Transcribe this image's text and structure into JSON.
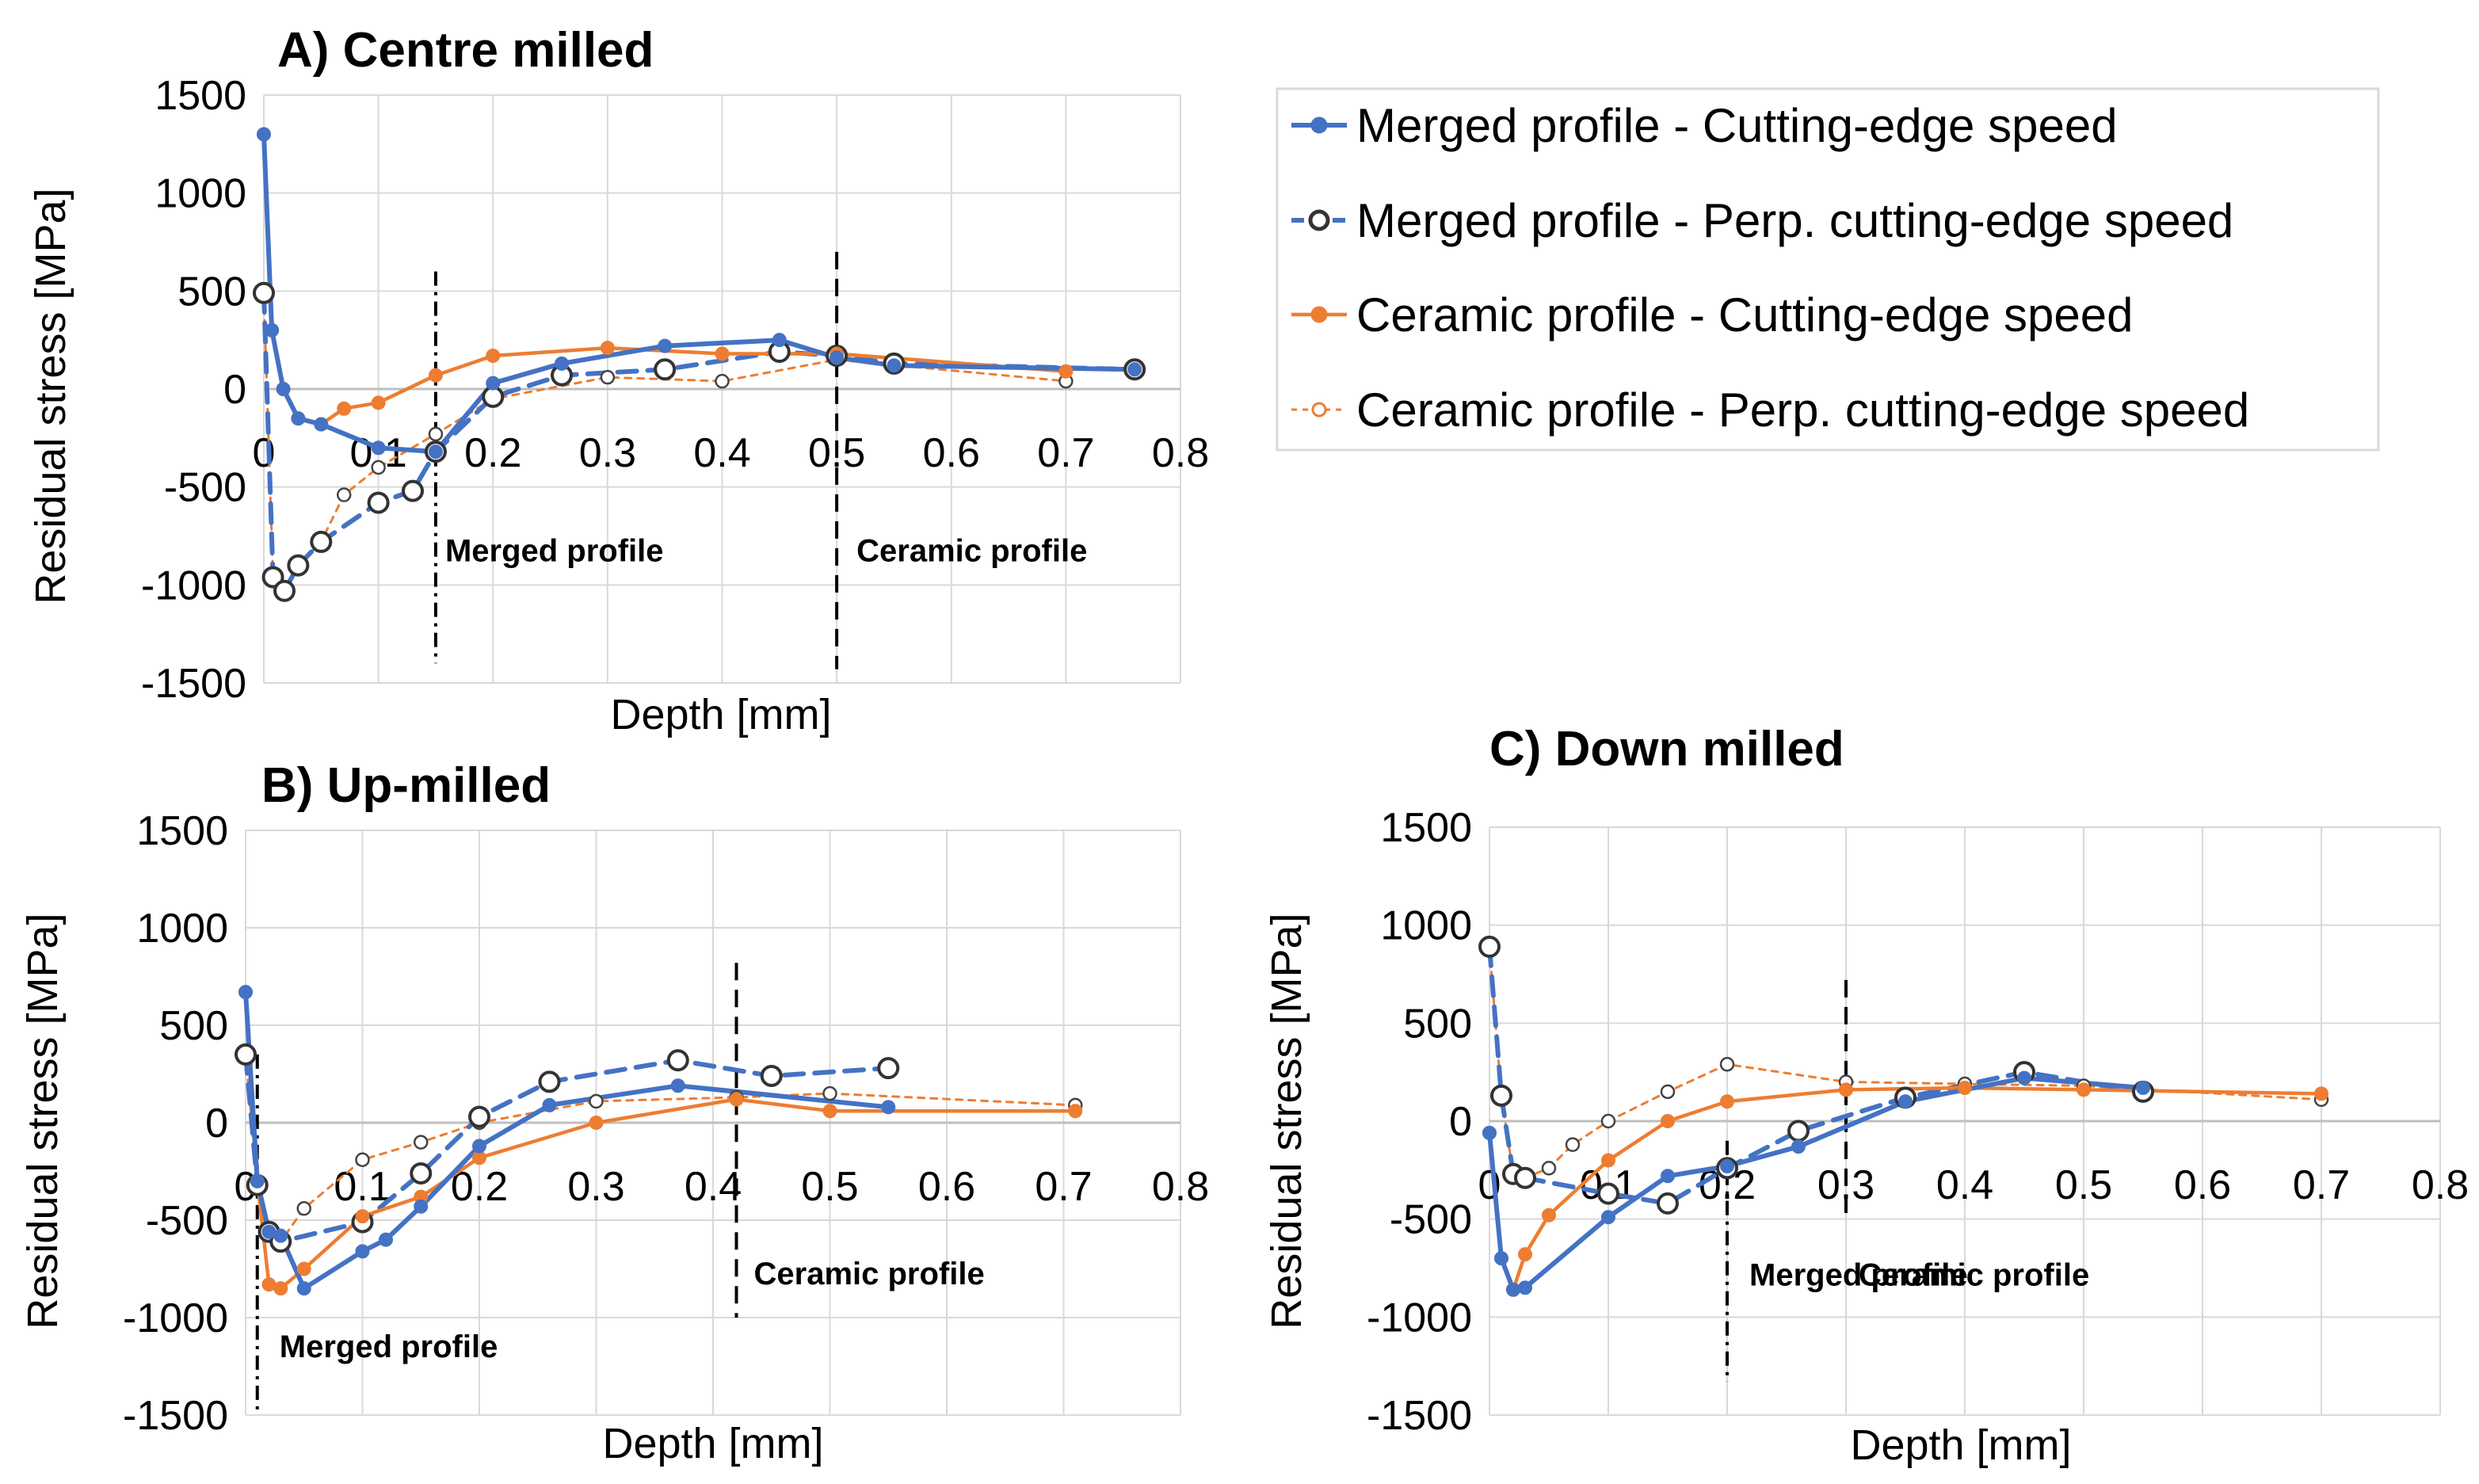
{
  "colors": {
    "blue": "#4472c4",
    "orange": "#ed7d31",
    "grid": "#d9d9d9",
    "black": "#000000"
  },
  "legend": [
    {
      "label": "Merged profile - Cutting-edge speed",
      "color": "#4472c4",
      "dash": "solid",
      "marker": "filled"
    },
    {
      "label": "Merged profile - Perp. cutting-edge speed",
      "color": "#4472c4",
      "dash": "dashed",
      "marker": "hollow"
    },
    {
      "label": "Ceramic profile - Cutting-edge speed",
      "color": "#ed7d31",
      "dash": "solid",
      "marker": "filled"
    },
    {
      "label": "Ceramic profile - Perp. cutting-edge speed",
      "color": "#ed7d31",
      "dash": "dotted",
      "marker": "hollow"
    }
  ],
  "chart_data": [
    {
      "id": "A",
      "type": "line",
      "title": "A) Centre milled",
      "xlabel": "Depth [mm]",
      "ylabel": "Residual stress [MPa]",
      "xlim": [
        0,
        0.8
      ],
      "ylim": [
        -1500,
        1500
      ],
      "xticks": [
        "0",
        "0.1",
        "0.2",
        "0.3",
        "0.4",
        "0.5",
        "0.6",
        "0.7",
        "0.8"
      ],
      "yticks": [
        "-1500",
        "-1000",
        "-500",
        "0",
        "500",
        "1000",
        "1500"
      ],
      "grid": true,
      "vlines": [
        {
          "x": 0.15,
          "style": "dashdot",
          "label": "Merged profile",
          "y_top": 600,
          "y_bottom": -1400
        },
        {
          "x": 0.5,
          "style": "dashed",
          "label": "Ceramic profile",
          "y_top": 700,
          "y_bottom": -1430
        }
      ],
      "series": [
        {
          "name": "Merged profile - Cutting-edge speed",
          "x": [
            0,
            0.007,
            0.017,
            0.03,
            0.05,
            0.1,
            0.15,
            0.2,
            0.26,
            0.35,
            0.45,
            0.5,
            0.55,
            0.76
          ],
          "y": [
            1300,
            300,
            0,
            -150,
            -180,
            -300,
            -320,
            30,
            130,
            220,
            250,
            160,
            120,
            100
          ]
        },
        {
          "name": "Merged profile - Perp. cutting-edge speed",
          "x": [
            0,
            0.008,
            0.018,
            0.03,
            0.05,
            0.1,
            0.13,
            0.15,
            0.2,
            0.26,
            0.35,
            0.45,
            0.5,
            0.55,
            0.76
          ],
          "y": [
            490,
            -960,
            -1030,
            -900,
            -780,
            -580,
            -520,
            -320,
            -40,
            70,
            100,
            190,
            170,
            130,
            100
          ]
        },
        {
          "name": "Ceramic profile - Cutting-edge speed",
          "x": [
            0,
            0.007,
            0.017,
            0.03,
            0.05,
            0.07,
            0.1,
            0.15,
            0.2,
            0.3,
            0.4,
            0.5,
            0.7
          ],
          "y": [
            1300,
            300,
            0,
            -150,
            -180,
            -100,
            -70,
            70,
            170,
            210,
            180,
            180,
            90
          ]
        },
        {
          "name": "Ceramic profile - Perp. cutting-edge speed",
          "x": [
            0,
            0.008,
            0.018,
            0.03,
            0.05,
            0.07,
            0.1,
            0.15,
            0.2,
            0.3,
            0.4,
            0.5,
            0.7
          ],
          "y": [
            480,
            -960,
            -1020,
            -900,
            -780,
            -540,
            -400,
            -230,
            -50,
            60,
            40,
            150,
            40
          ]
        }
      ]
    },
    {
      "id": "B",
      "type": "line",
      "title": "B) Up-milled",
      "xlabel": "Depth [mm]",
      "ylabel": "Residual stress [MPa]",
      "xlim": [
        0,
        0.8
      ],
      "ylim": [
        -1500,
        1500
      ],
      "xticks": [
        "0",
        "0.1",
        "0.2",
        "0.3",
        "0.4",
        "0.5",
        "0.6",
        "0.7",
        "0.8"
      ],
      "yticks": [
        "-1500",
        "-1000",
        "-500",
        "0",
        "500",
        "1000",
        "1500"
      ],
      "grid": true,
      "vlines": [
        {
          "x": 0.01,
          "style": "dashdot",
          "label": "Merged profile",
          "y_top": 350,
          "y_bottom": -1500
        },
        {
          "x": 0.42,
          "style": "dashed",
          "label": "Ceramic profile",
          "y_top": 820,
          "y_bottom": -1000
        }
      ],
      "series": [
        {
          "name": "Merged profile - Cutting-edge speed",
          "x": [
            0,
            0.01,
            0.02,
            0.03,
            0.05,
            0.1,
            0.12,
            0.15,
            0.2,
            0.26,
            0.37,
            0.55
          ],
          "y": [
            670,
            -300,
            -560,
            -580,
            -850,
            -660,
            -600,
            -430,
            -120,
            90,
            190,
            80
          ]
        },
        {
          "name": "Merged profile - Perp. cutting-edge speed",
          "x": [
            0,
            0.01,
            0.02,
            0.03,
            0.1,
            0.15,
            0.2,
            0.26,
            0.37,
            0.45,
            0.55
          ],
          "y": [
            350,
            -320,
            -560,
            -610,
            -510,
            -260,
            30,
            210,
            320,
            240,
            280
          ]
        },
        {
          "name": "Ceramic profile - Cutting-edge speed",
          "x": [
            0,
            0.01,
            0.02,
            0.03,
            0.05,
            0.1,
            0.15,
            0.2,
            0.3,
            0.42,
            0.5,
            0.71
          ],
          "y": [
            670,
            -300,
            -830,
            -850,
            -750,
            -480,
            -380,
            -180,
            0,
            120,
            60,
            60
          ]
        },
        {
          "name": "Ceramic profile - Perp. cutting-edge speed",
          "x": [
            0,
            0.01,
            0.02,
            0.03,
            0.05,
            0.1,
            0.15,
            0.2,
            0.3,
            0.42,
            0.5,
            0.71
          ],
          "y": [
            350,
            -320,
            -560,
            -610,
            -440,
            -190,
            -100,
            0,
            110,
            130,
            150,
            90
          ]
        }
      ]
    },
    {
      "id": "C",
      "type": "line",
      "title": "C) Down milled",
      "xlabel": "Depth [mm]",
      "ylabel": "Residual stress [MPa]",
      "xlim": [
        0,
        0.8
      ],
      "ylim": [
        -1500,
        1500
      ],
      "xticks": [
        "0",
        "0.1",
        "0.2",
        "0.3",
        "0.4",
        "0.5",
        "0.6",
        "0.7",
        "0.8"
      ],
      "yticks": [
        "-1500",
        "-1000",
        "-500",
        "0",
        "500",
        "1000",
        "1500"
      ],
      "grid": true,
      "vlines": [
        {
          "x": 0.2,
          "style": "dashdot",
          "label": "Merged profile",
          "y_top": -100,
          "y_bottom": -1330
        },
        {
          "x": 0.3,
          "style": "dashed",
          "label": "Ceramic profile",
          "y_top": 720,
          "y_bottom": -500
        }
      ],
      "series": [
        {
          "name": "Merged profile - Cutting-edge speed",
          "x": [
            0,
            0.01,
            0.02,
            0.03,
            0.1,
            0.15,
            0.2,
            0.26,
            0.35,
            0.45,
            0.55
          ],
          "y": [
            -60,
            -700,
            -860,
            -850,
            -490,
            -280,
            -230,
            -130,
            100,
            220,
            170
          ]
        },
        {
          "name": "Merged profile - Perp. cutting-edge speed",
          "x": [
            0,
            0.01,
            0.02,
            0.03,
            0.1,
            0.15,
            0.2,
            0.26,
            0.35,
            0.45,
            0.55
          ],
          "y": [
            890,
            130,
            -270,
            -290,
            -370,
            -420,
            -240,
            -50,
            120,
            250,
            150
          ]
        },
        {
          "name": "Ceramic profile - Cutting-edge speed",
          "x": [
            0,
            0.01,
            0.02,
            0.03,
            0.05,
            0.1,
            0.15,
            0.2,
            0.3,
            0.4,
            0.5,
            0.7
          ],
          "y": [
            -60,
            -700,
            -860,
            -680,
            -480,
            -200,
            0,
            100,
            160,
            170,
            160,
            140
          ]
        },
        {
          "name": "Ceramic profile - Perp. cutting-edge speed",
          "x": [
            0,
            0.01,
            0.02,
            0.03,
            0.05,
            0.07,
            0.1,
            0.15,
            0.2,
            0.3,
            0.4,
            0.5,
            0.7
          ],
          "y": [
            890,
            130,
            -270,
            -290,
            -240,
            -120,
            0,
            150,
            290,
            200,
            190,
            180,
            110
          ]
        }
      ]
    }
  ]
}
